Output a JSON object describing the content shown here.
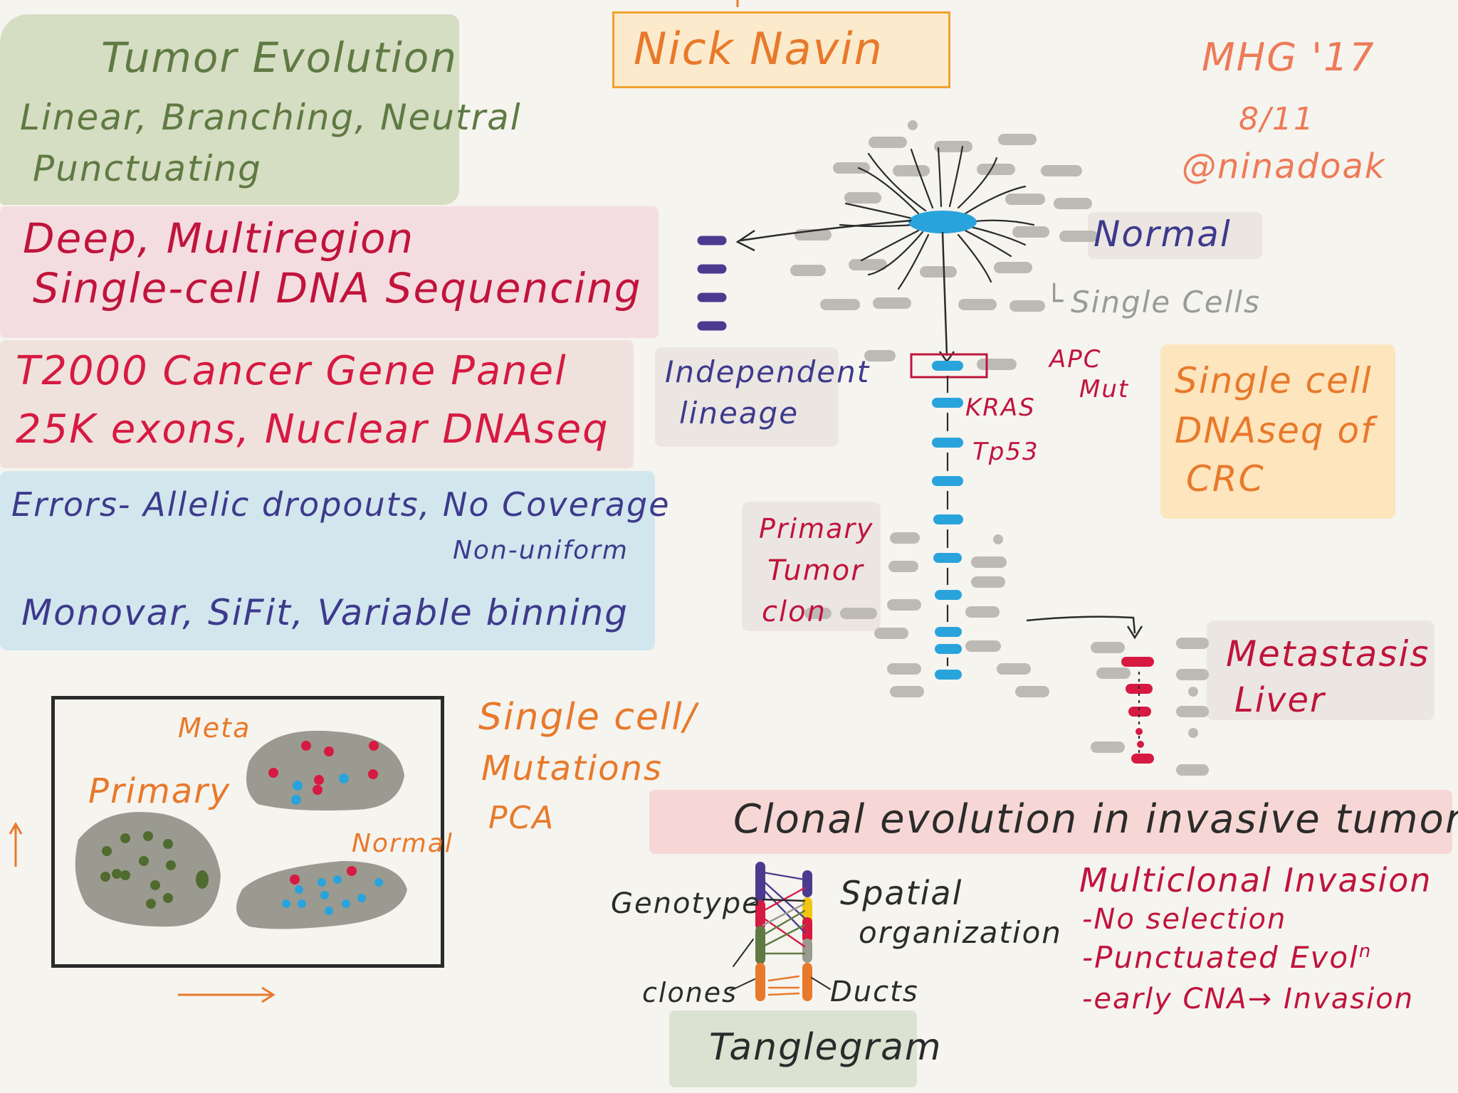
{
  "colors": {
    "green": "#5f7a43",
    "crimson": "#c0143c",
    "navy": "#3d3a8c",
    "orange": "#e8792b",
    "salmon": "#ee7a57",
    "blue": "#29a3dc",
    "gray": "#9a9a9a",
    "dark": "#2b2b2b"
  },
  "header": {
    "speaker": "Nick Navin",
    "conference": "MHG '17",
    "date": "8/11",
    "handle": "@ninadoak"
  },
  "left": {
    "tumor_title": "Tumor Evolution",
    "tumor_line1": "Linear, Branching, Neutral",
    "tumor_line2": "Punctuating",
    "deep_line1": "Deep, Multiregion",
    "deep_line2": "Single-cell DNA Sequencing",
    "panel_line1": "T2000 Cancer Gene Panel",
    "panel_line2": "25K exons, Nuclear DNAseq",
    "errors_line1": "Errors- Allelic dropouts, No Coverage",
    "errors_line2": "Non-uniform",
    "tools": "Monovar, SiFit, Variable binning"
  },
  "pca": {
    "meta": "Meta",
    "primary": "Primary",
    "normal": "Normal",
    "side_line1": "Single cell/",
    "side_line2": "Mutations",
    "side_line3": "PCA"
  },
  "tree": {
    "normal": "Normal",
    "single_cells": "Single Cells",
    "independent_line1": "Independent",
    "independent_line2": "lineage",
    "apc_line1": "APC",
    "apc_line2": "Mut",
    "kras": "KRAS",
    "tp53": "Tp53",
    "scdna_line1": "Single cell",
    "scdna_line2": "DNAseq of",
    "scdna_line3": "CRC",
    "primary_line1": "Primary",
    "primary_line2": "Tumor",
    "primary_line3": "clon",
    "meta_line1": "Metastasis",
    "meta_line2": "Liver"
  },
  "clonal": {
    "title": "Clonal evolution in invasive tumors",
    "genotype": "Genotype",
    "spatial_line1": "Spatial",
    "spatial_line2": "organization",
    "clones": "clones",
    "ducts": "Ducts",
    "tanglegram": "Tanglegram",
    "multi_title": "Multiclonal Invasion",
    "multi_1": "-No selection",
    "multi_2": "-Punctuated Evol",
    "multi_2_sup": "n",
    "multi_3": "-early CNA→ Invasion"
  }
}
